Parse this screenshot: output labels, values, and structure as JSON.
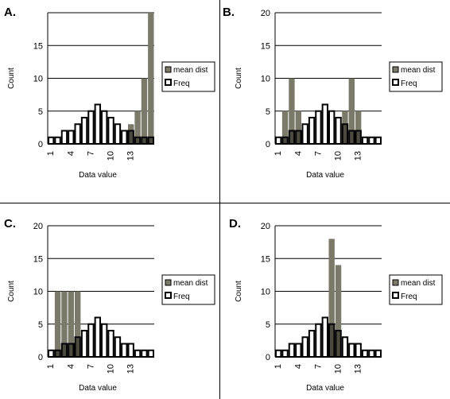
{
  "colors": {
    "mean_dist": "#7a7a6a",
    "freq_fill": "#ffffff",
    "freq_stroke": "#000000",
    "overlap": "#4a4a40"
  },
  "chart_data": [
    {
      "type": "bar",
      "panel": "A.",
      "xlabel": "Data value",
      "ylabel": "Count",
      "categories": [
        1,
        2,
        3,
        4,
        5,
        6,
        7,
        8,
        9,
        10,
        11,
        12,
        13,
        14,
        15,
        16
      ],
      "x_tick_labels": [
        "1",
        "4",
        "7",
        "10",
        "13"
      ],
      "y_ticks": [
        "0",
        "5",
        "10",
        "15"
      ],
      "ylim": [
        0,
        20
      ],
      "legend": [
        "mean dist",
        "Freq"
      ],
      "series": [
        {
          "name": "mean dist",
          "values": [
            0,
            0,
            0,
            0,
            0,
            0,
            0,
            0,
            0,
            0,
            0,
            1,
            3,
            5,
            10,
            20
          ]
        },
        {
          "name": "Freq",
          "values": [
            1,
            1,
            2,
            2,
            3,
            4,
            5,
            6,
            5,
            4,
            3,
            2,
            2,
            1,
            1,
            1
          ]
        }
      ]
    },
    {
      "type": "bar",
      "panel": "B.",
      "xlabel": "Data value",
      "ylabel": "Count",
      "categories": [
        1,
        2,
        3,
        4,
        5,
        6,
        7,
        8,
        9,
        10,
        11,
        12,
        13,
        14,
        15,
        16
      ],
      "x_tick_labels": [
        "1",
        "4",
        "7",
        "10",
        "13"
      ],
      "y_ticks": [
        "0",
        "5",
        "10",
        "15",
        "20"
      ],
      "ylim": [
        0,
        20
      ],
      "legend": [
        "mean dist",
        "Freq"
      ],
      "series": [
        {
          "name": "mean dist",
          "values": [
            0,
            5,
            10,
            5,
            0,
            0,
            0,
            0,
            0,
            0,
            5,
            10,
            5,
            0,
            0,
            0
          ]
        },
        {
          "name": "Freq",
          "values": [
            1,
            1,
            2,
            2,
            3,
            4,
            5,
            6,
            5,
            4,
            3,
            2,
            2,
            1,
            1,
            1
          ]
        }
      ]
    },
    {
      "type": "bar",
      "panel": "C.",
      "xlabel": "Data value",
      "ylabel": "Count",
      "categories": [
        1,
        2,
        3,
        4,
        5,
        6,
        7,
        8,
        9,
        10,
        11,
        12,
        13,
        14,
        15,
        16
      ],
      "x_tick_labels": [
        "1",
        "4",
        "7",
        "10",
        "13"
      ],
      "y_ticks": [
        "0",
        "5",
        "10",
        "15",
        "20"
      ],
      "ylim": [
        0,
        20
      ],
      "legend": [
        "mean dist",
        "Freq"
      ],
      "series": [
        {
          "name": "mean dist",
          "values": [
            0,
            10,
            10,
            10,
            10,
            0,
            0,
            0,
            0,
            0,
            0,
            0,
            0,
            0,
            0,
            0
          ]
        },
        {
          "name": "Freq",
          "values": [
            1,
            1,
            2,
            2,
            3,
            4,
            5,
            6,
            5,
            4,
            3,
            2,
            2,
            1,
            1,
            1
          ]
        }
      ]
    },
    {
      "type": "bar",
      "panel": "D.",
      "xlabel": "Data value",
      "ylabel": "Count",
      "categories": [
        1,
        2,
        3,
        4,
        5,
        6,
        7,
        8,
        9,
        10,
        11,
        12,
        13,
        14,
        15,
        16
      ],
      "x_tick_labels": [
        "1",
        "4",
        "7",
        "10",
        "13"
      ],
      "y_ticks": [
        "0",
        "5",
        "10",
        "15",
        "20"
      ],
      "ylim": [
        0,
        20
      ],
      "legend": [
        "mean dist",
        "Freq"
      ],
      "series": [
        {
          "name": "mean dist",
          "values": [
            0,
            0,
            0,
            0,
            0,
            0,
            1,
            3,
            18,
            14,
            1,
            0,
            0,
            0,
            0,
            0
          ]
        },
        {
          "name": "Freq",
          "values": [
            1,
            1,
            2,
            2,
            3,
            4,
            5,
            6,
            5,
            4,
            3,
            2,
            2,
            1,
            1,
            1
          ]
        }
      ]
    }
  ]
}
